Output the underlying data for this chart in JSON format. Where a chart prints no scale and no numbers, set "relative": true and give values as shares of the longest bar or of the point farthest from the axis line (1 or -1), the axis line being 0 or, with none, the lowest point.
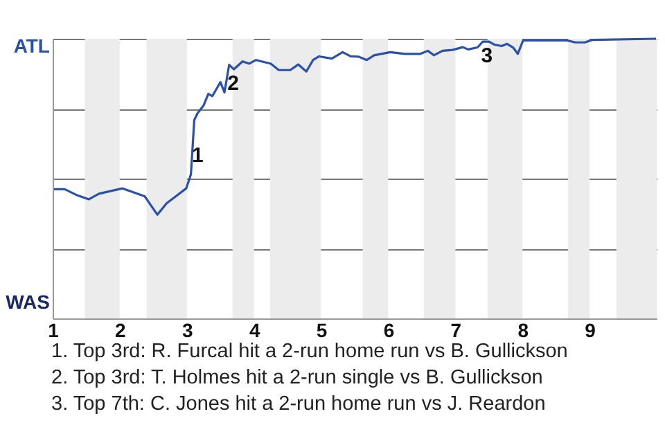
{
  "chart_data": {
    "type": "line",
    "relative": true,
    "x": [
      1.02,
      1.18,
      1.35,
      1.54,
      1.69,
      2.04,
      2.37,
      2.56,
      2.7,
      2.99,
      3.06,
      3.11,
      3.16,
      3.25,
      3.32,
      3.38,
      3.5,
      3.56,
      3.63,
      3.7,
      3.83,
      3.93,
      4.03,
      4.25,
      4.37,
      4.54,
      4.66,
      4.78,
      4.88,
      4.97,
      5.16,
      5.32,
      5.44,
      5.56,
      5.68,
      5.79,
      6.03,
      6.25,
      6.48,
      6.59,
      6.68,
      6.81,
      6.96,
      7.11,
      7.19,
      7.33,
      7.41,
      7.5,
      7.58,
      7.69,
      7.77,
      7.86,
      7.93,
      8.01,
      8.66,
      8.79,
      8.93,
      9.04,
      9.99
    ],
    "series": [
      {
        "color": "#2a50a8",
        "values": [
          0.462,
          0.462,
          0.442,
          0.426,
          0.446,
          0.465,
          0.437,
          0.371,
          0.412,
          0.465,
          0.515,
          0.709,
          0.734,
          0.762,
          0.803,
          0.795,
          0.845,
          0.808,
          0.907,
          0.891,
          0.919,
          0.911,
          0.924,
          0.911,
          0.888,
          0.888,
          0.908,
          0.883,
          0.924,
          0.937,
          0.929,
          0.952,
          0.937,
          0.936,
          0.924,
          0.941,
          0.952,
          0.946,
          0.946,
          0.957,
          0.941,
          0.957,
          0.96,
          0.97,
          0.962,
          0.969,
          0.99,
          0.99,
          0.979,
          0.974,
          0.982,
          0.969,
          0.946,
          0.994,
          0.994,
          0.987,
          0.987,
          0.996,
          1.0
        ]
      }
    ],
    "xlim": [
      1,
      10
    ],
    "xticks": [
      1,
      2,
      3,
      4,
      5,
      6,
      7,
      8,
      9
    ],
    "grid": "y",
    "bands": [
      {
        "axis": "x",
        "from": 1.48,
        "to": 2.0,
        "color": "#ececec"
      },
      {
        "axis": "x",
        "from": 2.4,
        "to": 3.0,
        "color": "#ececec"
      },
      {
        "axis": "x",
        "from": 3.68,
        "to": 4.0,
        "color": "#ececec"
      },
      {
        "axis": "x",
        "from": 4.24,
        "to": 5.0,
        "color": "#ececec"
      },
      {
        "axis": "x",
        "from": 5.62,
        "to": 6.0,
        "color": "#ececec"
      },
      {
        "axis": "x",
        "from": 6.53,
        "to": 7.0,
        "color": "#ececec"
      },
      {
        "axis": "x",
        "from": 7.48,
        "to": 8.0,
        "color": "#ececec"
      },
      {
        "axis": "x",
        "from": 8.68,
        "to": 9.0,
        "color": "#ececec"
      },
      {
        "axis": "x",
        "from": 9.4,
        "to": 10,
        "color": "#ececec"
      }
    ],
    "annotations": [
      "ATL",
      "WAS",
      {
        "text": "1",
        "x": 3.16,
        "y": 0.584
      },
      {
        "text": "2",
        "x": 3.69,
        "y": 0.842
      },
      {
        "text": "3",
        "x": 7.47,
        "y": 0.94
      },
      "1. Top 3rd: R. Furcal hit a 2-run home run vs B. Gullickson",
      "2. Top 3rd: T. Holmes hit a 2-run single vs B. Gullickson",
      "3. Top 7th: C. Jones hit a 2-run home run vs J. Reardon"
    ]
  }
}
